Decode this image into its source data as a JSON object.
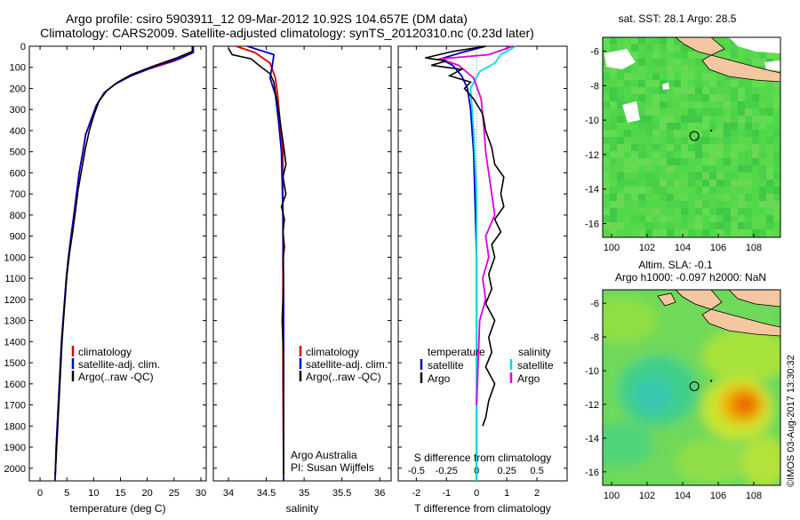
{
  "title": {
    "line1": "Argo profile: csiro 5903911_12 09-Mar-2012 10.92S 104.657E (DM data)",
    "line2": "Climatology: CARS2009. Satellite-adjusted climatology: synTS_20120310.nc (0.23d later)"
  },
  "footer_stamp": "©IMOS 03-Aug-2017 13:30:32",
  "colors": {
    "climatology": "#dd0000",
    "satellite": "#0000cc",
    "argo": "#000000",
    "sat_salinity": "#00dddd",
    "argo_salinity": "#dd00dd",
    "land": "#f5c7a0",
    "ocean_green": "#4fd84a"
  },
  "chart_data": [
    {
      "id": "temperature",
      "type": "line",
      "xlabel": "temperature (deg C)",
      "xlim": [
        -2,
        31
      ],
      "xticks": [
        0,
        5,
        10,
        15,
        20,
        25,
        30
      ],
      "ylim": [
        2060,
        0
      ],
      "yticks": [
        0,
        100,
        200,
        300,
        400,
        500,
        600,
        700,
        800,
        900,
        1000,
        1100,
        1200,
        1300,
        1400,
        1500,
        1600,
        1700,
        1800,
        1900,
        2000
      ],
      "legend": [
        "climatology",
        "satellite-adj. clim.",
        "Argo(..raw -QC)"
      ],
      "series": [
        {
          "name": "climatology",
          "color_key": "climatology",
          "points": [
            [
              28.5,
              0
            ],
            [
              28.4,
              30
            ],
            [
              25,
              70
            ],
            [
              20,
              110
            ],
            [
              16,
              150
            ],
            [
              14,
              180
            ],
            [
              12,
              220
            ],
            [
              10.5,
              280
            ],
            [
              9.5,
              350
            ],
            [
              8.5,
              420
            ],
            [
              8,
              500
            ],
            [
              7.3,
              600
            ],
            [
              6.8,
              700
            ],
            [
              6.3,
              800
            ],
            [
              5.8,
              900
            ],
            [
              5.3,
              1000
            ],
            [
              4.9,
              1100
            ],
            [
              4.6,
              1200
            ],
            [
              4.3,
              1300
            ],
            [
              4,
              1400
            ],
            [
              3.8,
              1500
            ],
            [
              3.6,
              1600
            ],
            [
              3.4,
              1700
            ],
            [
              3.2,
              1800
            ],
            [
              3,
              1900
            ],
            [
              2.9,
              2000
            ],
            [
              2.8,
              2060
            ]
          ]
        },
        {
          "name": "satellite-adj. clim.",
          "color_key": "satellite",
          "points": [
            [
              28.6,
              0
            ],
            [
              28.6,
              30
            ],
            [
              26,
              60
            ],
            [
              22,
              90
            ],
            [
              17,
              140
            ],
            [
              14,
              180
            ],
            [
              12,
              220
            ],
            [
              10.5,
              280
            ],
            [
              9.5,
              350
            ],
            [
              8.5,
              420
            ],
            [
              8,
              500
            ],
            [
              7.3,
              600
            ],
            [
              6.8,
              700
            ],
            [
              6.3,
              800
            ],
            [
              5.8,
              900
            ],
            [
              5.3,
              1000
            ],
            [
              4.9,
              1100
            ],
            [
              4.6,
              1200
            ],
            [
              4.3,
              1300
            ],
            [
              4,
              1400
            ],
            [
              3.8,
              1500
            ],
            [
              3.6,
              1600
            ],
            [
              3.4,
              1700
            ],
            [
              3.2,
              1800
            ],
            [
              3,
              1900
            ],
            [
              2.9,
              2000
            ],
            [
              2.8,
              2060
            ]
          ]
        },
        {
          "name": "Argo(..raw -QC)",
          "color_key": "argo",
          "points": [
            [
              28.4,
              0
            ],
            [
              28.4,
              25
            ],
            [
              25.5,
              55
            ],
            [
              21,
              95
            ],
            [
              17,
              135
            ],
            [
              14.5,
              170
            ],
            [
              12.5,
              210
            ],
            [
              11,
              260
            ],
            [
              10,
              330
            ],
            [
              9.2,
              400
            ],
            [
              8.5,
              480
            ],
            [
              7.8,
              580
            ],
            [
              7.1,
              680
            ],
            [
              6.6,
              780
            ],
            [
              6.1,
              880
            ],
            [
              5.5,
              980
            ],
            [
              5.0,
              1090
            ],
            [
              4.7,
              1190
            ],
            [
              4.4,
              1290
            ],
            [
              4.1,
              1400
            ],
            [
              3.9,
              1500
            ],
            [
              3.7,
              1600
            ],
            [
              3.5,
              1700
            ],
            [
              3.3,
              1800
            ],
            [
              3.1,
              1900
            ],
            [
              2.9,
              2000
            ],
            [
              2.8,
              2030
            ]
          ]
        }
      ]
    },
    {
      "id": "salinity",
      "type": "line",
      "xlabel": "salinity",
      "xlim": [
        33.8,
        36.15
      ],
      "xticks": [
        34,
        34.5,
        35,
        35.5,
        36
      ],
      "xticklabels": [
        "34",
        "34.5",
        "35",
        "35.5",
        "36"
      ],
      "ylim": [
        2060,
        0
      ],
      "legend": [
        "climatology",
        "satellite-adj. clim.",
        "Argo(..raw -QC)"
      ],
      "annotation": [
        "Argo Australia",
        "PI: Susan Wijffels"
      ],
      "series": [
        {
          "name": "climatology",
          "color_key": "climatology",
          "points": [
            [
              34.1,
              0
            ],
            [
              34.35,
              30
            ],
            [
              34.55,
              80
            ],
            [
              34.62,
              150
            ],
            [
              34.65,
              230
            ],
            [
              34.68,
              350
            ],
            [
              34.72,
              500
            ],
            [
              34.72,
              800
            ],
            [
              34.72,
              1200
            ],
            [
              34.72,
              1600
            ],
            [
              34.73,
              2060
            ]
          ]
        },
        {
          "name": "satellite-adj. clim.",
          "color_key": "satellite",
          "points": [
            [
              34.25,
              0
            ],
            [
              34.6,
              40
            ],
            [
              34.58,
              90
            ],
            [
              34.55,
              150
            ],
            [
              34.62,
              230
            ],
            [
              34.66,
              350
            ],
            [
              34.7,
              500
            ],
            [
              34.72,
              800
            ],
            [
              34.73,
              1200
            ],
            [
              34.73,
              1600
            ],
            [
              34.73,
              2060
            ]
          ]
        },
        {
          "name": "Argo(..raw -QC)",
          "color_key": "argo",
          "points": [
            [
              34.0,
              10
            ],
            [
              34.05,
              40
            ],
            [
              34.3,
              60
            ],
            [
              34.4,
              90
            ],
            [
              34.55,
              130
            ],
            [
              34.6,
              170
            ],
            [
              34.62,
              220
            ],
            [
              34.66,
              300
            ],
            [
              34.7,
              400
            ],
            [
              34.74,
              500
            ],
            [
              34.76,
              560
            ],
            [
              34.72,
              620
            ],
            [
              34.76,
              700
            ],
            [
              34.7,
              760
            ],
            [
              34.74,
              820
            ],
            [
              34.72,
              880
            ],
            [
              34.74,
              950
            ],
            [
              34.72,
              1020
            ],
            [
              34.73,
              1100
            ],
            [
              34.72,
              1200
            ],
            [
              34.71,
              1300
            ],
            [
              34.72,
              1400
            ],
            [
              34.73,
              1500
            ],
            [
              34.73,
              1600
            ],
            [
              34.73,
              1700
            ],
            [
              34.73,
              1800
            ],
            [
              34.73,
              2030
            ]
          ]
        }
      ]
    },
    {
      "id": "difference",
      "type": "line",
      "xlabel": "T difference from climatology",
      "xlabel2": "S difference from climatology",
      "xlim": [
        -2.6,
        3
      ],
      "xticks": [
        -2,
        -1,
        0,
        1,
        2
      ],
      "xticks2": [
        -2,
        -1,
        0,
        1,
        2
      ],
      "xticklabels2": [
        "-0.5",
        "-0.25",
        "0",
        "0.25",
        "0.5"
      ],
      "ylim": [
        2060,
        0
      ],
      "legend": {
        "temperature_header": "temperature",
        "salinity_header": "salinity",
        "temperature": [
          "satellite",
          "Argo"
        ],
        "salinity": [
          "satellite",
          "Argo"
        ]
      },
      "series": [
        {
          "name": "T satellite",
          "color_key": "satellite",
          "points": [
            [
              0.3,
              0
            ],
            [
              -0.5,
              30
            ],
            [
              -1.2,
              60
            ],
            [
              -0.8,
              90
            ],
            [
              -0.5,
              140
            ],
            [
              -0.3,
              200
            ],
            [
              -0.2,
              300
            ],
            [
              -0.1,
              500
            ],
            [
              0,
              1000
            ],
            [
              0,
              2060
            ]
          ]
        },
        {
          "name": "S satellite",
          "color_key": "sat_salinity",
          "points": [
            [
              1.3,
              0
            ],
            [
              0.8,
              40
            ],
            [
              0.6,
              80
            ],
            [
              0.1,
              120
            ],
            [
              -0.2,
              200
            ],
            [
              -0.1,
              400
            ],
            [
              0,
              700
            ],
            [
              0,
              2060
            ]
          ]
        },
        {
          "name": "S Argo",
          "color_key": "argo_salinity",
          "points": [
            [
              1.2,
              0
            ],
            [
              0.4,
              40
            ],
            [
              -1.2,
              60
            ],
            [
              -0.6,
              90
            ],
            [
              -0.1,
              150
            ],
            [
              0.15,
              250
            ],
            [
              0.25,
              400
            ],
            [
              0.3,
              500
            ],
            [
              0.4,
              600
            ],
            [
              0.5,
              700
            ],
            [
              0.6,
              800
            ],
            [
              0.3,
              900
            ],
            [
              0.4,
              1000
            ],
            [
              0.2,
              1100
            ],
            [
              0.3,
              1200
            ],
            [
              0.1,
              1300
            ],
            [
              0.05,
              1500
            ],
            [
              0,
              1700
            ]
          ]
        },
        {
          "name": "T Argo",
          "color_key": "argo",
          "points": [
            [
              0.3,
              0
            ],
            [
              -0.8,
              25
            ],
            [
              -1.7,
              55
            ],
            [
              -1.0,
              70
            ],
            [
              -1.5,
              90
            ],
            [
              -0.5,
              110
            ],
            [
              -0.9,
              140
            ],
            [
              -0.2,
              170
            ],
            [
              -0.4,
              200
            ],
            [
              -0.1,
              250
            ],
            [
              0.2,
              320
            ],
            [
              0.3,
              400
            ],
            [
              0.5,
              480
            ],
            [
              0.6,
              560
            ],
            [
              0.9,
              620
            ],
            [
              0.8,
              700
            ],
            [
              0.9,
              760
            ],
            [
              0.6,
              820
            ],
            [
              0.8,
              880
            ],
            [
              0.5,
              940
            ],
            [
              0.6,
              1000
            ],
            [
              0.4,
              1080
            ],
            [
              0.5,
              1150
            ],
            [
              0.3,
              1220
            ],
            [
              0.6,
              1300
            ],
            [
              0.4,
              1380
            ],
            [
              0.5,
              1450
            ],
            [
              0.3,
              1520
            ],
            [
              0.6,
              1600
            ],
            [
              0.4,
              1680
            ],
            [
              0.3,
              1760
            ],
            [
              0.2,
              1800
            ]
          ]
        }
      ]
    },
    {
      "id": "sst_map",
      "type": "heatmap",
      "title": "sat. SST: 28.1 Argo: 28.5",
      "xlim": [
        99.5,
        109.5
      ],
      "ylim": [
        -16.8,
        -5.2
      ],
      "xticks": [
        100,
        102,
        104,
        106,
        108
      ],
      "yticks": [
        -6,
        -8,
        -10,
        -12,
        -14,
        -16
      ],
      "argo_position": [
        104.657,
        -10.92
      ]
    },
    {
      "id": "sla_map",
      "type": "heatmap",
      "title_line1": "Altim. SLA: -0.1",
      "title_line2": "Argo h1000: -0.097 h2000: NaN",
      "xlim": [
        99.5,
        109.5
      ],
      "ylim": [
        -16.8,
        -5.2
      ],
      "xticks": [
        100,
        102,
        104,
        106,
        108
      ],
      "yticks": [
        -6,
        -8,
        -10,
        -12,
        -14,
        -16
      ],
      "argo_position": [
        104.657,
        -10.92
      ]
    }
  ]
}
